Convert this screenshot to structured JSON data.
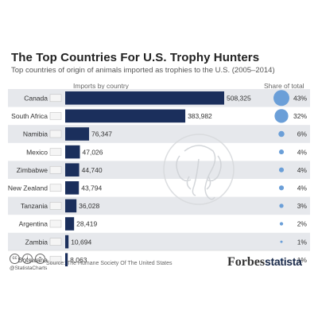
{
  "header": {
    "title": "The Top Countries For U.S. Trophy Hunters",
    "subtitle": "Top countries of origin of animals imported as trophies to the U.S. (2005–2014)",
    "col_imports": "Imports by country",
    "col_share": "Share of total"
  },
  "chart_data": {
    "type": "bar",
    "orientation": "horizontal",
    "title": "The Top Countries For U.S. Trophy Hunters",
    "categories": [
      "Canada",
      "South Africa",
      "Namibia",
      "Mexico",
      "Zimbabwe",
      "New Zealand",
      "Tanzania",
      "Argentina",
      "Zambia",
      "Botswana"
    ],
    "values": [
      508325,
      383982,
      76347,
      47026,
      44740,
      43794,
      36028,
      28419,
      10694,
      8063
    ],
    "value_labels": [
      "508,325",
      "383,982",
      "76,347",
      "47,026",
      "44,740",
      "43,794",
      "36,028",
      "28,419",
      "10,694",
      "8,063"
    ],
    "share": [
      43,
      32,
      6,
      4,
      4,
      4,
      3,
      2,
      1,
      1
    ],
    "share_labels": [
      "43%",
      "32%",
      "6%",
      "4%",
      "4%",
      "4%",
      "3%",
      "2%",
      "1%",
      "1%"
    ],
    "bar_color": "#1b2f5c",
    "bubble_color": "#6b9fd8",
    "row_shade_color": "#e6e8ec",
    "grid": false
  },
  "footer": {
    "cc_icons": [
      "cc-icon",
      "person-icon",
      "equals-icon"
    ],
    "handle": "@StatistaCharts",
    "source": "Source: The Humane Society Of The United States",
    "logo_forbes": "Forbes",
    "logo_statista": "statista"
  }
}
